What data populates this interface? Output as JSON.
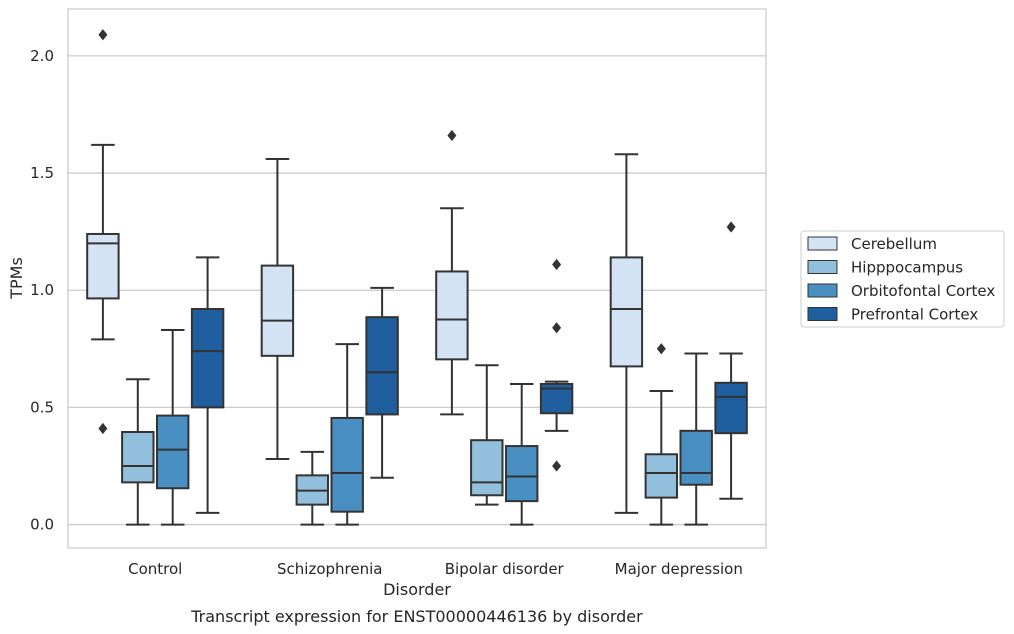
{
  "chart_data": {
    "type": "boxplot",
    "title": "Transcript expression for ENST00000446136 by disorder",
    "xlabel": "Disorder",
    "ylabel": "TPMs",
    "ylim": [
      -0.1,
      2.2
    ],
    "yticks": [
      "0.0",
      "0.5",
      "1.0",
      "1.5",
      "2.0"
    ],
    "grid": true,
    "legend_position": "right",
    "categories": [
      "Control",
      "Schizophrenia",
      "Bipolar disorder",
      "Major depression"
    ],
    "series": [
      {
        "name": "Cerebellum",
        "color": "#d4e3f4",
        "boxes": [
          {
            "whislo": 0.79,
            "q1": 0.965,
            "med": 1.2,
            "q3": 1.24,
            "whishi": 1.62,
            "fliers": [
              2.09,
              0.41
            ]
          },
          {
            "whislo": 0.28,
            "q1": 0.72,
            "med": 0.87,
            "q3": 1.105,
            "whishi": 1.56,
            "fliers": []
          },
          {
            "whislo": 0.47,
            "q1": 0.705,
            "med": 0.875,
            "q3": 1.08,
            "whishi": 1.35,
            "fliers": [
              1.66
            ]
          },
          {
            "whislo": 0.05,
            "q1": 0.675,
            "med": 0.92,
            "q3": 1.14,
            "whishi": 1.58,
            "fliers": []
          }
        ]
      },
      {
        "name": "Hipppocampus",
        "color": "#92bfdb",
        "boxes": [
          {
            "whislo": 0.0,
            "q1": 0.18,
            "med": 0.25,
            "q3": 0.395,
            "whishi": 0.62,
            "fliers": []
          },
          {
            "whislo": 0.0,
            "q1": 0.085,
            "med": 0.145,
            "q3": 0.21,
            "whishi": 0.31,
            "fliers": []
          },
          {
            "whislo": 0.085,
            "q1": 0.125,
            "med": 0.18,
            "q3": 0.36,
            "whishi": 0.68,
            "fliers": []
          },
          {
            "whislo": 0.0,
            "q1": 0.115,
            "med": 0.22,
            "q3": 0.3,
            "whishi": 0.57,
            "fliers": [
              0.75
            ]
          }
        ]
      },
      {
        "name": "Orbitofontal Cortex",
        "color": "#4a8fc2",
        "boxes": [
          {
            "whislo": 0.0,
            "q1": 0.155,
            "med": 0.32,
            "q3": 0.465,
            "whishi": 0.83,
            "fliers": []
          },
          {
            "whislo": 0.0,
            "q1": 0.055,
            "med": 0.22,
            "q3": 0.455,
            "whishi": 0.77,
            "fliers": []
          },
          {
            "whislo": 0.0,
            "q1": 0.1,
            "med": 0.205,
            "q3": 0.335,
            "whishi": 0.6,
            "fliers": []
          },
          {
            "whislo": 0.0,
            "q1": 0.17,
            "med": 0.22,
            "q3": 0.4,
            "whishi": 0.73,
            "fliers": []
          }
        ]
      },
      {
        "name": "Prefrontal Cortex",
        "color": "#1f5fa0",
        "boxes": [
          {
            "whislo": 0.05,
            "q1": 0.5,
            "med": 0.74,
            "q3": 0.92,
            "whishi": 1.14,
            "fliers": []
          },
          {
            "whislo": 0.2,
            "q1": 0.47,
            "med": 0.65,
            "q3": 0.885,
            "whishi": 1.01,
            "fliers": []
          },
          {
            "whislo": 0.4,
            "q1": 0.475,
            "med": 0.58,
            "q3": 0.6,
            "whishi": 0.61,
            "fliers": [
              1.11,
              0.84,
              0.25
            ]
          },
          {
            "whislo": 0.11,
            "q1": 0.39,
            "med": 0.545,
            "q3": 0.605,
            "whishi": 0.73,
            "fliers": [
              1.27
            ]
          }
        ]
      }
    ]
  }
}
